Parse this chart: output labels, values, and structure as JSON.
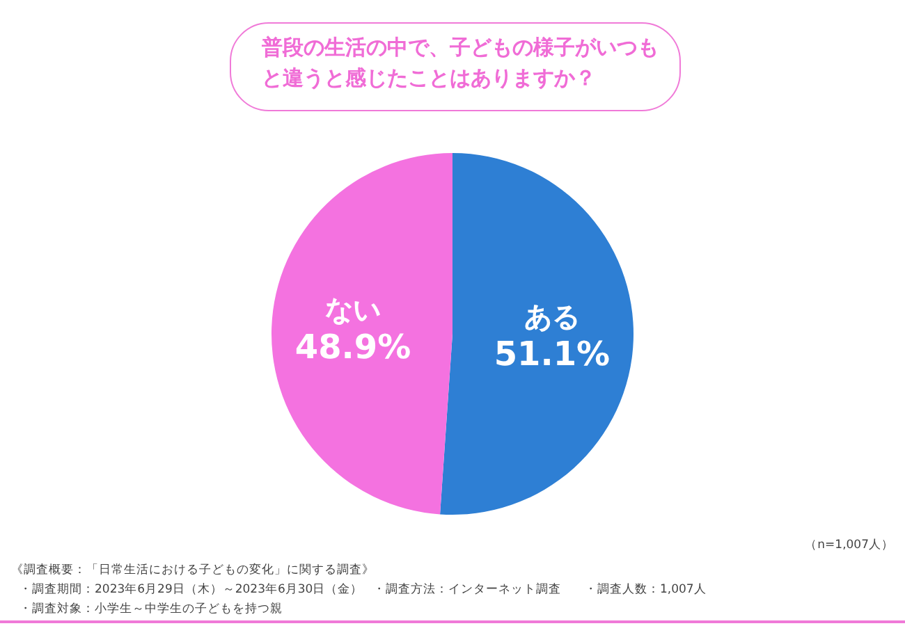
{
  "chart_data": {
    "type": "pie",
    "title": "普段の生活の中で、子どもの様子がいつもと違うと感じたことはありますか？",
    "categories": [
      "ある",
      "ない"
    ],
    "values": [
      51.1,
      48.9
    ],
    "colors": [
      "#2e7fd4",
      "#f472e0"
    ],
    "value_labels": [
      "51.1%",
      "48.9%"
    ],
    "annotations": [
      "（n=1,007人）",
      "《調査概要：「日常生活における子どもの変化」に関する調査》",
      "・調査期間：2023年6月29日（木）～2023年6月30日（金）",
      "・調査方法：インターネット調査",
      "・調査人数：1,007人",
      "・調査対象：小学生～中学生の子どもを持つ親"
    ]
  }
}
